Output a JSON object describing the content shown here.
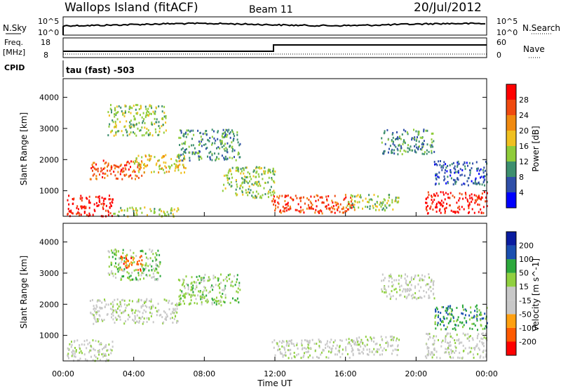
{
  "header": {
    "station": "Wallops Island (fitACF)",
    "beam": "Beam 11",
    "date": "20/Jul/2012"
  },
  "top_panels": {
    "nsky_label": "N.Sky",
    "nsearch_label": "N.Search",
    "nsky_ticks": [
      "10^5",
      "10^0"
    ],
    "nsearch_ticks": [
      "10^5",
      "10^0"
    ],
    "freq_label_1": "Freq.",
    "freq_label_2": "[MHz]",
    "freq_ticks": [
      "18",
      "8"
    ],
    "nave_label": "Nave",
    "nave_ticks": [
      "60",
      "0"
    ],
    "cpid_label": "CPID",
    "cpid_value": "tau (fast) -503"
  },
  "colors": {
    "power_scale": [
      "#0000ff",
      "#2f4fa8",
      "#3d8f6e",
      "#8fcc3a",
      "#f0c020",
      "#f08a10",
      "#f04a10",
      "#ff0000"
    ],
    "velocity_scale": [
      "#ff0000",
      "#ff5a00",
      "#ffa010",
      "#c8c8c8",
      "#c8c8c8",
      "#90d040",
      "#2ca83c",
      "#1a4fb0",
      "#0a1ca0"
    ],
    "ground_scatter": "#c8c8c8"
  },
  "chart_data": [
    {
      "type": "heatmap",
      "panel": "power",
      "title": "",
      "xlabel": "Time UT",
      "ylabel": "Slant Range [km]",
      "xlim": [
        "00:00",
        "24:00"
      ],
      "ylim": [
        180,
        4600
      ],
      "x_ticks": [
        "00:00",
        "04:00",
        "08:00",
        "12:00",
        "16:00",
        "20:00",
        "00:00"
      ],
      "y_ticks": [
        "1000",
        "2000",
        "3000",
        "4000"
      ],
      "colorbar_label": "Power [dB]",
      "colorbar_ticks": [
        "4",
        "8",
        "12",
        "16",
        "20",
        "24",
        "28"
      ],
      "regions": [
        {
          "t0": 0.2,
          "t1": 2.8,
          "r0": 200,
          "r1": 900,
          "level": 7
        },
        {
          "t0": 2.8,
          "t1": 6.5,
          "r0": 200,
          "r1": 500,
          "level": 3
        },
        {
          "t0": 1.5,
          "t1": 4.5,
          "r0": 1400,
          "r1": 2000,
          "level": 6
        },
        {
          "t0": 4.0,
          "t1": 7.0,
          "r0": 1600,
          "r1": 2200,
          "level": 4
        },
        {
          "t0": 2.5,
          "t1": 5.8,
          "r0": 2800,
          "r1": 3800,
          "level": 3
        },
        {
          "t0": 6.5,
          "t1": 10.0,
          "r0": 2000,
          "r1": 3000,
          "level": 2
        },
        {
          "t0": 9.0,
          "t1": 12.0,
          "r0": 800,
          "r1": 1800,
          "level": 3
        },
        {
          "t0": 11.8,
          "t1": 16.5,
          "r0": 300,
          "r1": 900,
          "level": 6
        },
        {
          "t0": 16.0,
          "t1": 19.0,
          "r0": 400,
          "r1": 900,
          "level": 3
        },
        {
          "t0": 18.0,
          "t1": 21.0,
          "r0": 2200,
          "r1": 3000,
          "level": 2
        },
        {
          "t0": 20.5,
          "t1": 24.0,
          "r0": 300,
          "r1": 1000,
          "level": 7
        },
        {
          "t0": 21.0,
          "t1": 24.0,
          "r0": 1200,
          "r1": 2000,
          "level": 1
        }
      ]
    },
    {
      "type": "heatmap",
      "panel": "velocity",
      "title": "",
      "xlabel": "Time UT",
      "ylabel": "Slant Range [km]",
      "xlim": [
        "00:00",
        "24:00"
      ],
      "ylim": [
        180,
        4600
      ],
      "x_ticks": [
        "00:00",
        "04:00",
        "08:00",
        "12:00",
        "16:00",
        "20:00",
        "00:00"
      ],
      "y_ticks": [
        "1000",
        "2000",
        "3000",
        "4000"
      ],
      "colorbar_label": "Velocity [m s^-1]",
      "colorbar_ticks": [
        "-200",
        "-100",
        "-50",
        "-15",
        "15",
        "50",
        "100",
        "200"
      ],
      "regions": [
        {
          "t0": 0.2,
          "t1": 2.8,
          "r0": 200,
          "r1": 900,
          "level": 4
        },
        {
          "t0": 1.5,
          "t1": 6.5,
          "r0": 1400,
          "r1": 2200,
          "level": 4
        },
        {
          "t0": 2.5,
          "t1": 5.5,
          "r0": 2800,
          "r1": 3800,
          "level": 5
        },
        {
          "t0": 3.2,
          "t1": 4.5,
          "r0": 3100,
          "r1": 3600,
          "level": 1
        },
        {
          "t0": 6.5,
          "t1": 10.0,
          "r0": 2000,
          "r1": 3000,
          "level": 5
        },
        {
          "t0": 11.8,
          "t1": 16.5,
          "r0": 300,
          "r1": 900,
          "level": 4
        },
        {
          "t0": 16.0,
          "t1": 19.0,
          "r0": 400,
          "r1": 1000,
          "level": 4
        },
        {
          "t0": 18.0,
          "t1": 21.0,
          "r0": 2200,
          "r1": 3000,
          "level": 4
        },
        {
          "t0": 20.5,
          "t1": 24.0,
          "r0": 300,
          "r1": 1100,
          "level": 4
        },
        {
          "t0": 21.0,
          "t1": 24.0,
          "r0": 1200,
          "r1": 2000,
          "level": 6
        }
      ]
    }
  ]
}
